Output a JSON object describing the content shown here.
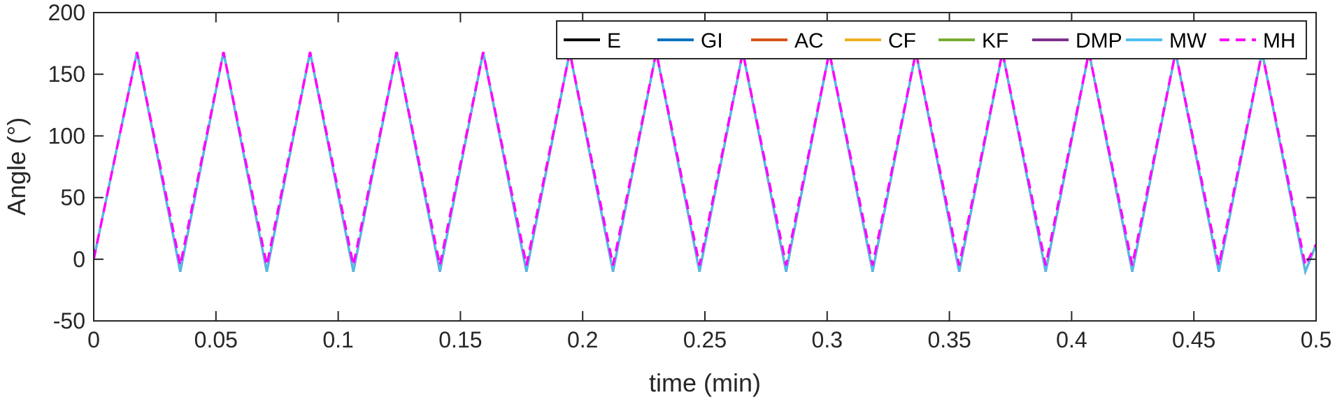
{
  "chart_data": {
    "type": "line",
    "xlabel": "time (min)",
    "ylabel": "Angle (°)",
    "xlim": [
      0,
      0.5
    ],
    "ylim": [
      -50,
      200
    ],
    "xticks": [
      0,
      0.05,
      0.1,
      0.15,
      0.2,
      0.25,
      0.3,
      0.35,
      0.4,
      0.45,
      0.5
    ],
    "xtick_labels": [
      "0",
      "0.05",
      "0.1",
      "0.15",
      "0.2",
      "0.25",
      "0.3",
      "0.35",
      "0.4",
      "0.45",
      "0.5"
    ],
    "yticks": [
      -50,
      0,
      50,
      100,
      150,
      200
    ],
    "ytick_labels": [
      "-50",
      "0",
      "50",
      "100",
      "150",
      "200"
    ],
    "grid": false,
    "legend_position": "top-right",
    "series": [
      {
        "name": "E",
        "color": "#000000",
        "dash": "solid",
        "x": [
          0,
          0.0177,
          0.0354,
          0.0531,
          0.0708,
          0.0885,
          0.1062,
          0.1239,
          0.1416,
          0.1593,
          0.177,
          0.1947,
          0.2124,
          0.2301,
          0.2478,
          0.2655,
          0.2832,
          0.3009,
          0.3186,
          0.3363,
          0.354,
          0.3717,
          0.3894,
          0.4071,
          0.4248,
          0.4425,
          0.4602,
          0.4779,
          0.4956,
          0.5
        ],
        "y": [
          0,
          168,
          -10,
          168,
          -10,
          168,
          -10,
          168,
          -10,
          168,
          -10,
          168,
          -10,
          168,
          -10,
          168,
          -10,
          168,
          -10,
          168,
          -10,
          168,
          -10,
          168,
          -10,
          168,
          -10,
          168,
          -10,
          12
        ]
      },
      {
        "name": "GI",
        "color": "#0072BD",
        "dash": "solid",
        "x": [
          0,
          0.0177,
          0.0354,
          0.0531,
          0.0708,
          0.0885,
          0.1062,
          0.1239,
          0.1416,
          0.1593,
          0.177,
          0.1947,
          0.2124,
          0.2301,
          0.2478,
          0.2655,
          0.2832,
          0.3009,
          0.3186,
          0.3363,
          0.354,
          0.3717,
          0.3894,
          0.4071,
          0.4248,
          0.4425,
          0.4602,
          0.4779,
          0.4956,
          0.5
        ],
        "y": [
          0,
          168,
          -10,
          168,
          -10,
          168,
          -10,
          168,
          -10,
          168,
          -10,
          168,
          -10,
          168,
          -10,
          168,
          -10,
          168,
          -10,
          168,
          -10,
          168,
          -10,
          168,
          -10,
          168,
          -10,
          168,
          -10,
          12
        ]
      },
      {
        "name": "AC",
        "color": "#D95319",
        "dash": "solid",
        "x": [
          0,
          0.0177,
          0.0354,
          0.0531,
          0.0708,
          0.0885,
          0.1062,
          0.1239,
          0.1416,
          0.1593,
          0.177,
          0.1947,
          0.2124,
          0.2301,
          0.2478,
          0.2655,
          0.2832,
          0.3009,
          0.3186,
          0.3363,
          0.354,
          0.3717,
          0.3894,
          0.4071,
          0.4248,
          0.4425,
          0.4602,
          0.4779,
          0.4956,
          0.5
        ],
        "y": [
          0,
          168,
          -10,
          168,
          -10,
          168,
          -10,
          168,
          -10,
          168,
          -10,
          168,
          -10,
          168,
          -10,
          168,
          -10,
          168,
          -10,
          168,
          -10,
          168,
          -10,
          168,
          -10,
          168,
          -10,
          168,
          -10,
          12
        ]
      },
      {
        "name": "CF",
        "color": "#EDB120",
        "dash": "solid",
        "x": [
          0,
          0.0177,
          0.0354,
          0.0531,
          0.0708,
          0.0885,
          0.1062,
          0.1239,
          0.1416,
          0.1593,
          0.177,
          0.1947,
          0.2124,
          0.2301,
          0.2478,
          0.2655,
          0.2832,
          0.3009,
          0.3186,
          0.3363,
          0.354,
          0.3717,
          0.3894,
          0.4071,
          0.4248,
          0.4425,
          0.4602,
          0.4779,
          0.4956,
          0.5
        ],
        "y": [
          0,
          168,
          -10,
          168,
          -10,
          168,
          -10,
          168,
          -10,
          168,
          -10,
          168,
          -10,
          168,
          -10,
          168,
          -10,
          168,
          -10,
          168,
          -10,
          168,
          -10,
          168,
          -10,
          168,
          -10,
          168,
          -10,
          12
        ]
      },
      {
        "name": "KF",
        "color": "#77AC30",
        "dash": "solid",
        "x": [
          0,
          0.0177,
          0.0354,
          0.0531,
          0.0708,
          0.0885,
          0.1062,
          0.1239,
          0.1416,
          0.1593,
          0.177,
          0.1947,
          0.2124,
          0.2301,
          0.2478,
          0.2655,
          0.2832,
          0.3009,
          0.3186,
          0.3363,
          0.354,
          0.3717,
          0.3894,
          0.4071,
          0.4248,
          0.4425,
          0.4602,
          0.4779,
          0.4956,
          0.5
        ],
        "y": [
          0,
          168,
          -10,
          168,
          -10,
          168,
          -10,
          168,
          -10,
          168,
          -10,
          168,
          -10,
          168,
          -10,
          168,
          -10,
          168,
          -10,
          168,
          -10,
          168,
          -10,
          168,
          -10,
          168,
          -10,
          168,
          -10,
          12
        ]
      },
      {
        "name": "DMP",
        "color": "#7E2F8E",
        "dash": "solid",
        "x": [
          0,
          0.0177,
          0.0354,
          0.0531,
          0.0708,
          0.0885,
          0.1062,
          0.1239,
          0.1416,
          0.1593,
          0.177,
          0.1947,
          0.2124,
          0.2301,
          0.2478,
          0.2655,
          0.2832,
          0.3009,
          0.3186,
          0.3363,
          0.354,
          0.3717,
          0.3894,
          0.4071,
          0.4248,
          0.4425,
          0.4602,
          0.4779,
          0.4956,
          0.5
        ],
        "y": [
          0,
          168,
          -10,
          168,
          -10,
          168,
          -10,
          168,
          -10,
          168,
          -10,
          168,
          -10,
          168,
          -10,
          168,
          -10,
          168,
          -10,
          168,
          -10,
          168,
          -10,
          168,
          -10,
          168,
          -10,
          168,
          -10,
          12
        ]
      },
      {
        "name": "MW",
        "color": "#4DBEEE",
        "dash": "solid",
        "x": [
          0,
          0.0177,
          0.0354,
          0.0531,
          0.0708,
          0.0885,
          0.1062,
          0.1239,
          0.1416,
          0.1593,
          0.177,
          0.1947,
          0.2124,
          0.2301,
          0.2478,
          0.2655,
          0.2832,
          0.3009,
          0.3186,
          0.3363,
          0.354,
          0.3717,
          0.3894,
          0.4071,
          0.4248,
          0.4425,
          0.4602,
          0.4779,
          0.4956,
          0.5
        ],
        "y": [
          0,
          168,
          -10,
          168,
          -10,
          168,
          -10,
          168,
          -10,
          168,
          -10,
          168,
          -10,
          168,
          -10,
          168,
          -10,
          168,
          -10,
          168,
          -10,
          168,
          -10,
          168,
          -10,
          168,
          -10,
          168,
          -10,
          12
        ]
      },
      {
        "name": "MH",
        "color": "#FF00FF",
        "dash": "dashed",
        "x": [
          0,
          0.0177,
          0.0354,
          0.0531,
          0.0708,
          0.0885,
          0.1062,
          0.1239,
          0.1416,
          0.1593,
          0.177,
          0.1947,
          0.2124,
          0.2301,
          0.2478,
          0.2655,
          0.2832,
          0.3009,
          0.3186,
          0.3363,
          0.354,
          0.3717,
          0.3894,
          0.4071,
          0.4248,
          0.4425,
          0.4602,
          0.4779,
          0.4956,
          0.5
        ],
        "y": [
          0,
          168,
          -5,
          168,
          -5,
          168,
          -5,
          168,
          -5,
          168,
          -5,
          168,
          -5,
          168,
          -5,
          168,
          -5,
          168,
          -5,
          168,
          -5,
          168,
          -5,
          168,
          -5,
          168,
          -5,
          168,
          -5,
          12
        ]
      }
    ]
  }
}
